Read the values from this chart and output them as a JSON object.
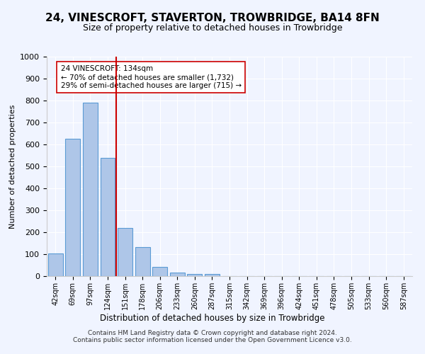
{
  "title": "24, VINESCROFT, STAVERTON, TROWBRIDGE, BA14 8FN",
  "subtitle": "Size of property relative to detached houses in Trowbridge",
  "xlabel": "Distribution of detached houses by size in Trowbridge",
  "ylabel": "Number of detached properties",
  "bar_labels": [
    "42sqm",
    "69sqm",
    "97sqm",
    "124sqm",
    "151sqm",
    "178sqm",
    "206sqm",
    "233sqm",
    "260sqm",
    "287sqm",
    "315sqm",
    "342sqm",
    "369sqm",
    "396sqm",
    "424sqm",
    "451sqm",
    "478sqm",
    "505sqm",
    "533sqm",
    "560sqm",
    "587sqm"
  ],
  "bar_values": [
    103,
    625,
    790,
    540,
    220,
    133,
    42,
    15,
    10,
    10,
    0,
    0,
    0,
    0,
    0,
    0,
    0,
    0,
    0,
    0,
    0
  ],
  "bar_color": "#aec6e8",
  "bar_edge_color": "#5b9bd5",
  "ylim": [
    0,
    1000
  ],
  "yticks": [
    0,
    100,
    200,
    300,
    400,
    500,
    600,
    700,
    800,
    900,
    1000
  ],
  "property_line_color": "#cc0000",
  "annotation_text": "24 VINESCROFT: 134sqm\n← 70% of detached houses are smaller (1,732)\n29% of semi-detached houses are larger (715) →",
  "annotation_box_color": "#ffffff",
  "annotation_box_edge_color": "#cc0000",
  "footer_text": "Contains HM Land Registry data © Crown copyright and database right 2024.\nContains public sector information licensed under the Open Government Licence v3.0.",
  "fig_facecolor": "#f0f4ff"
}
